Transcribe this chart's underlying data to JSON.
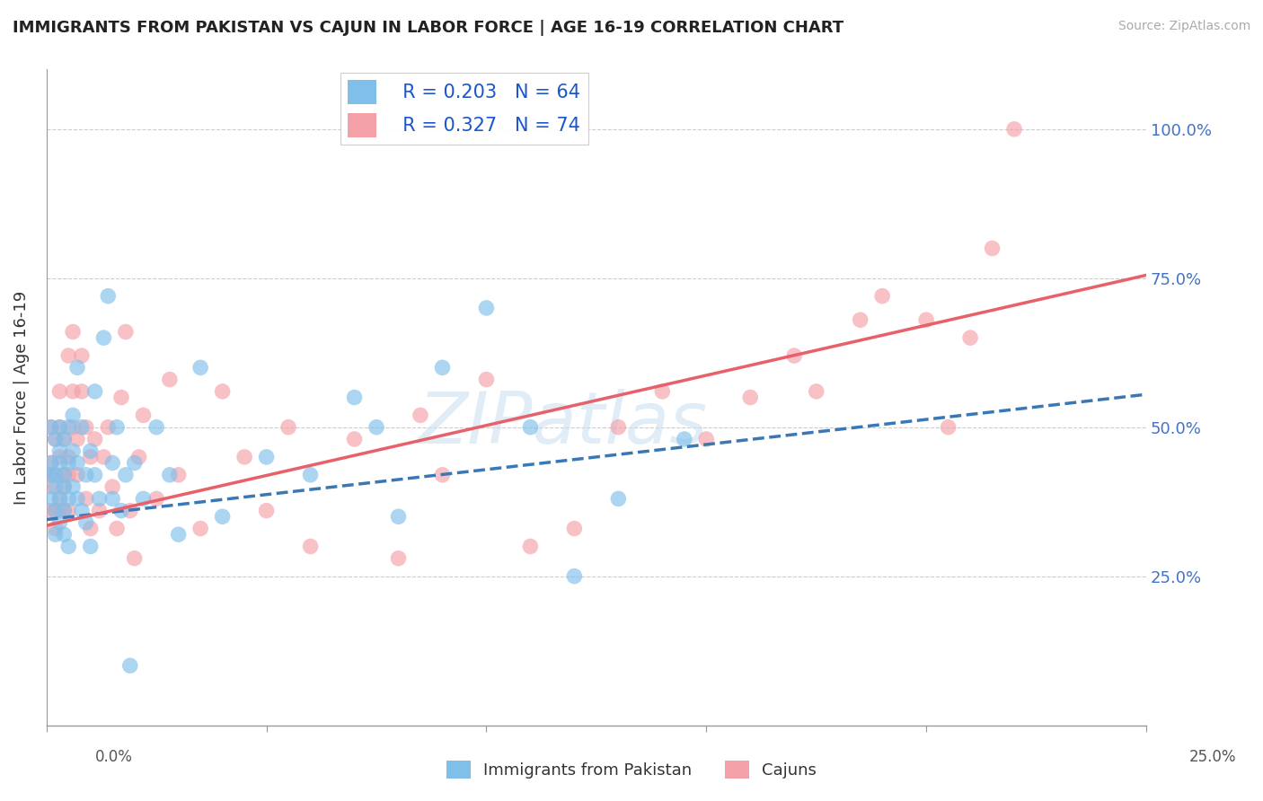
{
  "title": "IMMIGRANTS FROM PAKISTAN VS CAJUN IN LABOR FORCE | AGE 16-19 CORRELATION CHART",
  "source": "Source: ZipAtlas.com",
  "ylabel": "In Labor Force | Age 16-19",
  "watermark": "ZIPatlas",
  "xlim": [
    0.0,
    0.25
  ],
  "ylim": [
    0.0,
    1.1
  ],
  "xticks": [
    0.0,
    0.05,
    0.1,
    0.15,
    0.2,
    0.25
  ],
  "xticklabels_ends": [
    "0.0%",
    "25.0%"
  ],
  "yticks": [
    0.25,
    0.5,
    0.75,
    1.0
  ],
  "yticklabels": [
    "25.0%",
    "50.0%",
    "75.0%",
    "100.0%"
  ],
  "pakistan_color": "#7fbfea",
  "cajun_color": "#f4a0a8",
  "pakistan_line_color": "#3a78b5",
  "cajun_line_color": "#e8606a",
  "pakistan_R": 0.203,
  "pakistan_N": 64,
  "cajun_R": 0.327,
  "cajun_N": 74,
  "legend_label_1": "Immigrants from Pakistan",
  "legend_label_2": "Cajuns",
  "pak_line_x0": 0.0,
  "pak_line_y0": 0.345,
  "pak_line_x1": 0.25,
  "pak_line_y1": 0.555,
  "caj_line_x0": 0.0,
  "caj_line_y0": 0.335,
  "caj_line_x1": 0.25,
  "caj_line_y1": 0.755,
  "pakistan_scatter_x": [
    0.001,
    0.001,
    0.001,
    0.001,
    0.002,
    0.002,
    0.002,
    0.002,
    0.002,
    0.003,
    0.003,
    0.003,
    0.003,
    0.003,
    0.004,
    0.004,
    0.004,
    0.004,
    0.004,
    0.005,
    0.005,
    0.005,
    0.005,
    0.006,
    0.006,
    0.006,
    0.007,
    0.007,
    0.007,
    0.008,
    0.008,
    0.009,
    0.009,
    0.01,
    0.01,
    0.011,
    0.011,
    0.012,
    0.013,
    0.014,
    0.015,
    0.015,
    0.016,
    0.017,
    0.018,
    0.019,
    0.02,
    0.022,
    0.025,
    0.028,
    0.03,
    0.035,
    0.04,
    0.05,
    0.06,
    0.07,
    0.075,
    0.08,
    0.09,
    0.1,
    0.11,
    0.12,
    0.13,
    0.145
  ],
  "pakistan_scatter_y": [
    0.42,
    0.38,
    0.44,
    0.5,
    0.36,
    0.42,
    0.48,
    0.32,
    0.4,
    0.38,
    0.44,
    0.5,
    0.34,
    0.46,
    0.4,
    0.36,
    0.48,
    0.42,
    0.32,
    0.38,
    0.44,
    0.3,
    0.5,
    0.4,
    0.46,
    0.52,
    0.38,
    0.44,
    0.6,
    0.36,
    0.5,
    0.42,
    0.34,
    0.46,
    0.3,
    0.42,
    0.56,
    0.38,
    0.65,
    0.72,
    0.44,
    0.38,
    0.5,
    0.36,
    0.42,
    0.1,
    0.44,
    0.38,
    0.5,
    0.42,
    0.32,
    0.6,
    0.35,
    0.45,
    0.42,
    0.55,
    0.5,
    0.35,
    0.6,
    0.7,
    0.5,
    0.25,
    0.38,
    0.48
  ],
  "cajun_scatter_x": [
    0.0,
    0.001,
    0.001,
    0.001,
    0.001,
    0.002,
    0.002,
    0.002,
    0.002,
    0.003,
    0.003,
    0.003,
    0.003,
    0.003,
    0.004,
    0.004,
    0.004,
    0.004,
    0.005,
    0.005,
    0.005,
    0.005,
    0.006,
    0.006,
    0.006,
    0.007,
    0.007,
    0.008,
    0.008,
    0.009,
    0.009,
    0.01,
    0.01,
    0.011,
    0.012,
    0.013,
    0.014,
    0.015,
    0.016,
    0.017,
    0.018,
    0.019,
    0.02,
    0.021,
    0.022,
    0.025,
    0.028,
    0.03,
    0.035,
    0.04,
    0.045,
    0.05,
    0.055,
    0.06,
    0.07,
    0.08,
    0.085,
    0.09,
    0.1,
    0.11,
    0.12,
    0.13,
    0.14,
    0.15,
    0.16,
    0.17,
    0.175,
    0.185,
    0.19,
    0.2,
    0.205,
    0.21,
    0.215,
    0.22
  ],
  "cajun_scatter_y": [
    0.42,
    0.36,
    0.44,
    0.4,
    0.5,
    0.36,
    0.42,
    0.48,
    0.33,
    0.38,
    0.45,
    0.36,
    0.5,
    0.56,
    0.42,
    0.36,
    0.48,
    0.4,
    0.45,
    0.36,
    0.62,
    0.42,
    0.5,
    0.56,
    0.66,
    0.42,
    0.48,
    0.56,
    0.62,
    0.38,
    0.5,
    0.45,
    0.33,
    0.48,
    0.36,
    0.45,
    0.5,
    0.4,
    0.33,
    0.55,
    0.66,
    0.36,
    0.28,
    0.45,
    0.52,
    0.38,
    0.58,
    0.42,
    0.33,
    0.56,
    0.45,
    0.36,
    0.5,
    0.3,
    0.48,
    0.28,
    0.52,
    0.42,
    0.58,
    0.3,
    0.33,
    0.5,
    0.56,
    0.48,
    0.55,
    0.62,
    0.56,
    0.68,
    0.72,
    0.68,
    0.5,
    0.65,
    0.8,
    1.0
  ]
}
